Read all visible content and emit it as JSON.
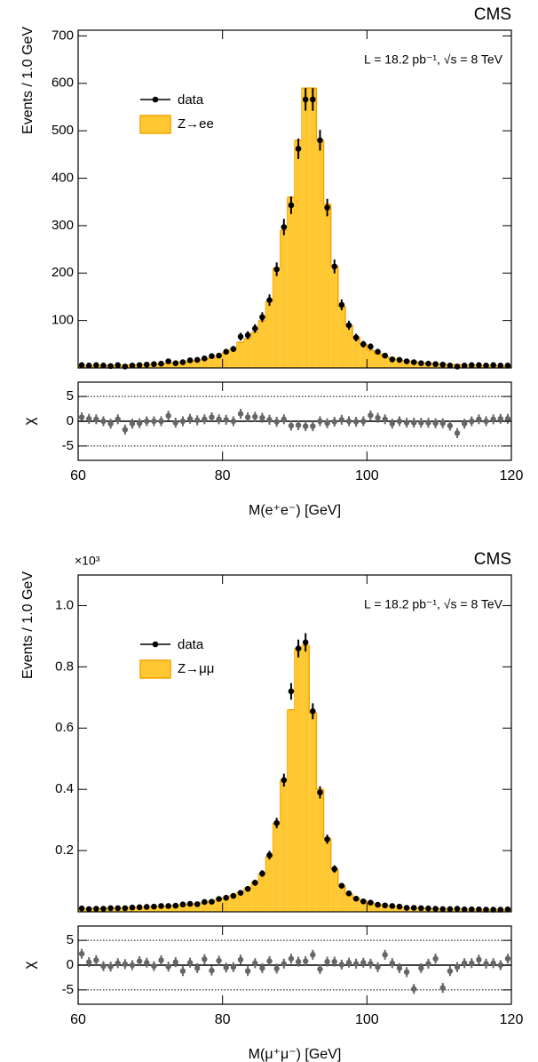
{
  "chart_data": [
    {
      "type": "histogram",
      "title": "CMS",
      "annotation": "L = 18.2 pb⁻¹, √s = 8 TeV",
      "ylabel": "Events / 1.0 GeV",
      "bins": [
        60,
        61,
        62,
        63,
        64,
        65,
        66,
        67,
        68,
        69,
        70,
        71,
        72,
        73,
        74,
        75,
        76,
        77,
        78,
        79,
        80,
        81,
        82,
        83,
        84,
        85,
        86,
        87,
        88,
        89,
        90,
        91,
        92,
        93,
        94,
        95,
        96,
        97,
        98,
        99,
        100,
        101,
        102,
        103,
        104,
        105,
        106,
        107,
        108,
        109,
        110,
        111,
        112,
        113,
        114,
        115,
        116,
        117,
        118,
        119,
        120
      ],
      "xlim": [
        60,
        120
      ],
      "xticks": [
        60,
        80,
        100,
        120
      ],
      "xticklabels": false,
      "ylim": [
        0,
        712
      ],
      "yticks": [
        100,
        200,
        300,
        400,
        500,
        600,
        700
      ],
      "legend": "upper left",
      "series": [
        {
          "name": "Z→ee",
          "style": "fill",
          "color": "#ffc832",
          "edgecolor": "#f5a300",
          "values": [
            4,
            4,
            5,
            5,
            5,
            5,
            6,
            6,
            7,
            7,
            8,
            9,
            10,
            11,
            12,
            14,
            16,
            18,
            21,
            24,
            32,
            40,
            54,
            62,
            75,
            100,
            140,
            210,
            290,
            360,
            480,
            590,
            590,
            480,
            345,
            215,
            130,
            90,
            65,
            50,
            37,
            30,
            24,
            20,
            17,
            15,
            13,
            11,
            10,
            9,
            8,
            7,
            7,
            6,
            6,
            5,
            5,
            5,
            4,
            4
          ]
        },
        {
          "name": "data",
          "style": "errorbar",
          "color": "#000000",
          "values": [
            6,
            5,
            6,
            5,
            4,
            6,
            3,
            5,
            6,
            7,
            8,
            9,
            14,
            10,
            12,
            16,
            17,
            20,
            25,
            26,
            34,
            40,
            66,
            69,
            83,
            107,
            143,
            208,
            297,
            343,
            462,
            566,
            566,
            480,
            338,
            214,
            133,
            90,
            64,
            50,
            45,
            34,
            26,
            18,
            17,
            14,
            12,
            10,
            9,
            8,
            7,
            5,
            3,
            5,
            6,
            6,
            5,
            6,
            5,
            5
          ],
          "errors": [
            2.4,
            2.2,
            2.4,
            2.2,
            2,
            2.4,
            1.7,
            2.2,
            2.4,
            2.6,
            2.8,
            3,
            3.7,
            3.2,
            3.5,
            4,
            4.1,
            4.5,
            5,
            5.1,
            5.8,
            6.3,
            8.1,
            8.3,
            9.1,
            10.3,
            12,
            14.4,
            17.2,
            18.5,
            21.5,
            23.8,
            23.8,
            21.9,
            18.4,
            14.6,
            11.5,
            9.5,
            8,
            7.1,
            6.7,
            5.8,
            5.1,
            4.2,
            4.1,
            3.7,
            3.5,
            3.2,
            3,
            2.8,
            2.6,
            2.2,
            1.7,
            2.2,
            2.4,
            2.4,
            2.2,
            2.4,
            2.2,
            2.2
          ]
        }
      ]
    },
    {
      "type": "scatter",
      "ylabel": "χ",
      "xlabel": "M(e⁺e⁻) [GeV]",
      "color": "#666666",
      "error": 1,
      "x": [
        60.5,
        61.5,
        62.5,
        63.5,
        64.5,
        65.5,
        66.5,
        67.5,
        68.5,
        69.5,
        70.5,
        71.5,
        72.5,
        73.5,
        74.5,
        75.5,
        76.5,
        77.5,
        78.5,
        79.5,
        80.5,
        81.5,
        82.5,
        83.5,
        84.5,
        85.5,
        86.5,
        87.5,
        88.5,
        89.5,
        90.5,
        91.5,
        92.5,
        93.5,
        94.5,
        95.5,
        96.5,
        97.5,
        98.5,
        99.5,
        100.5,
        101.5,
        102.5,
        103.5,
        104.5,
        105.5,
        106.5,
        107.5,
        108.5,
        109.5,
        110.5,
        111.5,
        112.5,
        113.5,
        114.5,
        115.5,
        116.5,
        117.5,
        118.5,
        119.5
      ],
      "values": [
        0.8,
        0.5,
        0.4,
        0,
        -0.5,
        0.4,
        -1.7,
        -0.5,
        -0.4,
        0,
        0,
        0,
        1.1,
        -0.3,
        0,
        0.5,
        0.2,
        0.4,
        0.8,
        0.4,
        0.3,
        0,
        1.5,
        0.8,
        0.9,
        0.7,
        0.3,
        -0.1,
        0.4,
        -0.9,
        -0.8,
        -1,
        -1,
        0,
        -0.4,
        -0.1,
        0.3,
        0,
        -0.1,
        0,
        1.2,
        0.7,
        0.4,
        -0.5,
        0,
        -0.3,
        -0.3,
        -0.3,
        -0.3,
        -0.4,
        -0.4,
        -0.9,
        -2.4,
        -0.5,
        0,
        0.4,
        0,
        0.4,
        0.5,
        0.5
      ],
      "xlim": [
        60,
        120
      ],
      "xticks": [
        60,
        80,
        100,
        120
      ],
      "xticklabels": true,
      "ylim": [
        -7.9,
        7.9
      ],
      "yticks": [
        -5,
        0,
        5
      ],
      "grid": true,
      "refline": 0
    },
    {
      "type": "histogram",
      "title": "CMS",
      "annotation": "L = 18.2 pb⁻¹, √s = 8 TeV",
      "ylabel": "Events / 1.0 GeV",
      "yoffset": "×10³",
      "bins": [
        60,
        61,
        62,
        63,
        64,
        65,
        66,
        67,
        68,
        69,
        70,
        71,
        72,
        73,
        74,
        75,
        76,
        77,
        78,
        79,
        80,
        81,
        82,
        83,
        84,
        85,
        86,
        87,
        88,
        89,
        90,
        91,
        92,
        93,
        94,
        95,
        96,
        97,
        98,
        99,
        100,
        101,
        102,
        103,
        104,
        105,
        106,
        107,
        108,
        109,
        110,
        111,
        112,
        113,
        114,
        115,
        116,
        117,
        118,
        119,
        120
      ],
      "xlim": [
        60,
        120
      ],
      "xticks": [
        60,
        80,
        100,
        120
      ],
      "xticklabels": false,
      "ylim": [
        0,
        1.1
      ],
      "yticks": [
        0.2,
        0.4,
        0.6,
        0.8,
        {
          "value": 1,
          "label": "1.0"
        }
      ],
      "legend": "upper left",
      "series": [
        {
          "name": "Z→μμ",
          "style": "fill",
          "color": "#ffc832",
          "edgecolor": "#f5a300",
          "values": [
            0.01,
            0.01,
            0.011,
            0.011,
            0.012,
            0.012,
            0.013,
            0.014,
            0.015,
            0.016,
            0.017,
            0.018,
            0.019,
            0.021,
            0.023,
            0.025,
            0.027,
            0.031,
            0.035,
            0.04,
            0.046,
            0.054,
            0.064,
            0.078,
            0.097,
            0.125,
            0.18,
            0.29,
            0.43,
            0.66,
            0.86,
            0.87,
            0.65,
            0.4,
            0.24,
            0.14,
            0.085,
            0.058,
            0.044,
            0.035,
            0.029,
            0.024,
            0.021,
            0.018,
            0.016,
            0.014,
            0.013,
            0.012,
            0.011,
            0.01,
            0.01,
            0.009,
            0.009,
            0.008,
            0.008,
            0.008,
            0.007,
            0.007,
            0.007,
            0.007
          ]
        },
        {
          "name": "data",
          "style": "errorbar",
          "color": "#000000",
          "values": [
            0.011,
            0.009,
            0.01,
            0.01,
            0.012,
            0.012,
            0.012,
            0.014,
            0.015,
            0.016,
            0.017,
            0.019,
            0.019,
            0.02,
            0.024,
            0.026,
            0.025,
            0.032,
            0.033,
            0.042,
            0.046,
            0.052,
            0.062,
            0.075,
            0.095,
            0.125,
            0.185,
            0.29,
            0.43,
            0.72,
            0.86,
            0.88,
            0.655,
            0.39,
            0.237,
            0.14,
            0.085,
            0.06,
            0.043,
            0.034,
            0.03,
            0.023,
            0.021,
            0.019,
            0.017,
            0.013,
            0.013,
            0.012,
            0.011,
            0.01,
            0.009,
            0.009,
            0.01,
            0.008,
            0.008,
            0.008,
            0.007,
            0.007,
            0.007,
            0.008
          ],
          "errors": [
            0.003,
            0.003,
            0.003,
            0.003,
            0.003,
            0.003,
            0.003,
            0.004,
            0.004,
            0.004,
            0.004,
            0.004,
            0.004,
            0.004,
            0.005,
            0.005,
            0.005,
            0.006,
            0.006,
            0.006,
            0.007,
            0.007,
            0.008,
            0.009,
            0.01,
            0.011,
            0.014,
            0.017,
            0.021,
            0.027,
            0.029,
            0.03,
            0.026,
            0.02,
            0.015,
            0.012,
            0.009,
            0.008,
            0.007,
            0.006,
            0.005,
            0.005,
            0.005,
            0.004,
            0.004,
            0.004,
            0.004,
            0.003,
            0.003,
            0.003,
            0.003,
            0.003,
            0.003,
            0.003,
            0.003,
            0.003,
            0.003,
            0.003,
            0.003,
            0.003
          ]
        }
      ]
    },
    {
      "type": "scatter",
      "ylabel": "χ",
      "xlabel": "M(μ⁺μ⁻) [GeV]",
      "color": "#666666",
      "error": 1,
      "x": [
        60.5,
        61.5,
        62.5,
        63.5,
        64.5,
        65.5,
        66.5,
        67.5,
        68.5,
        69.5,
        70.5,
        71.5,
        72.5,
        73.5,
        74.5,
        75.5,
        76.5,
        77.5,
        78.5,
        79.5,
        80.5,
        81.5,
        82.5,
        83.5,
        84.5,
        85.5,
        86.5,
        87.5,
        88.5,
        89.5,
        90.5,
        91.5,
        92.5,
        93.5,
        94.5,
        95.5,
        96.5,
        97.5,
        98.5,
        99.5,
        100.5,
        101.5,
        102.5,
        103.5,
        104.5,
        105.5,
        106.5,
        107.5,
        108.5,
        109.5,
        110.5,
        111.5,
        112.5,
        113.5,
        114.5,
        115.5,
        116.5,
        117.5,
        118.5,
        119.5
      ],
      "values": [
        2.3,
        0.6,
        1,
        -0.2,
        -0.3,
        0.4,
        0.2,
        0,
        0.8,
        0.5,
        -0.2,
        1,
        -0.3,
        0.6,
        -1.2,
        0.5,
        -0.6,
        1.2,
        -1.1,
        0.9,
        -0.5,
        -0.4,
        1.1,
        -1.2,
        0.4,
        -0.6,
        0.8,
        -0.7,
        0.3,
        1.3,
        0.7,
        0.8,
        2.1,
        -0.8,
        0.7,
        0.7,
        0.1,
        0.5,
        0.3,
        0.5,
        0.3,
        -0.4,
        2.1,
        0.4,
        -0.6,
        -1.4,
        -4.8,
        -0.6,
        0.3,
        1.3,
        -4.6,
        -1.2,
        -0.4,
        0.4,
        0.4,
        1.1,
        0.3,
        0.4,
        0,
        1.3
      ],
      "xlim": [
        60,
        120
      ],
      "xticks": [
        60,
        80,
        100,
        120
      ],
      "xticklabels": true,
      "ylim": [
        -7.9,
        7.9
      ],
      "yticks": [
        -5,
        0,
        5
      ],
      "grid": true,
      "refline": 0
    }
  ]
}
